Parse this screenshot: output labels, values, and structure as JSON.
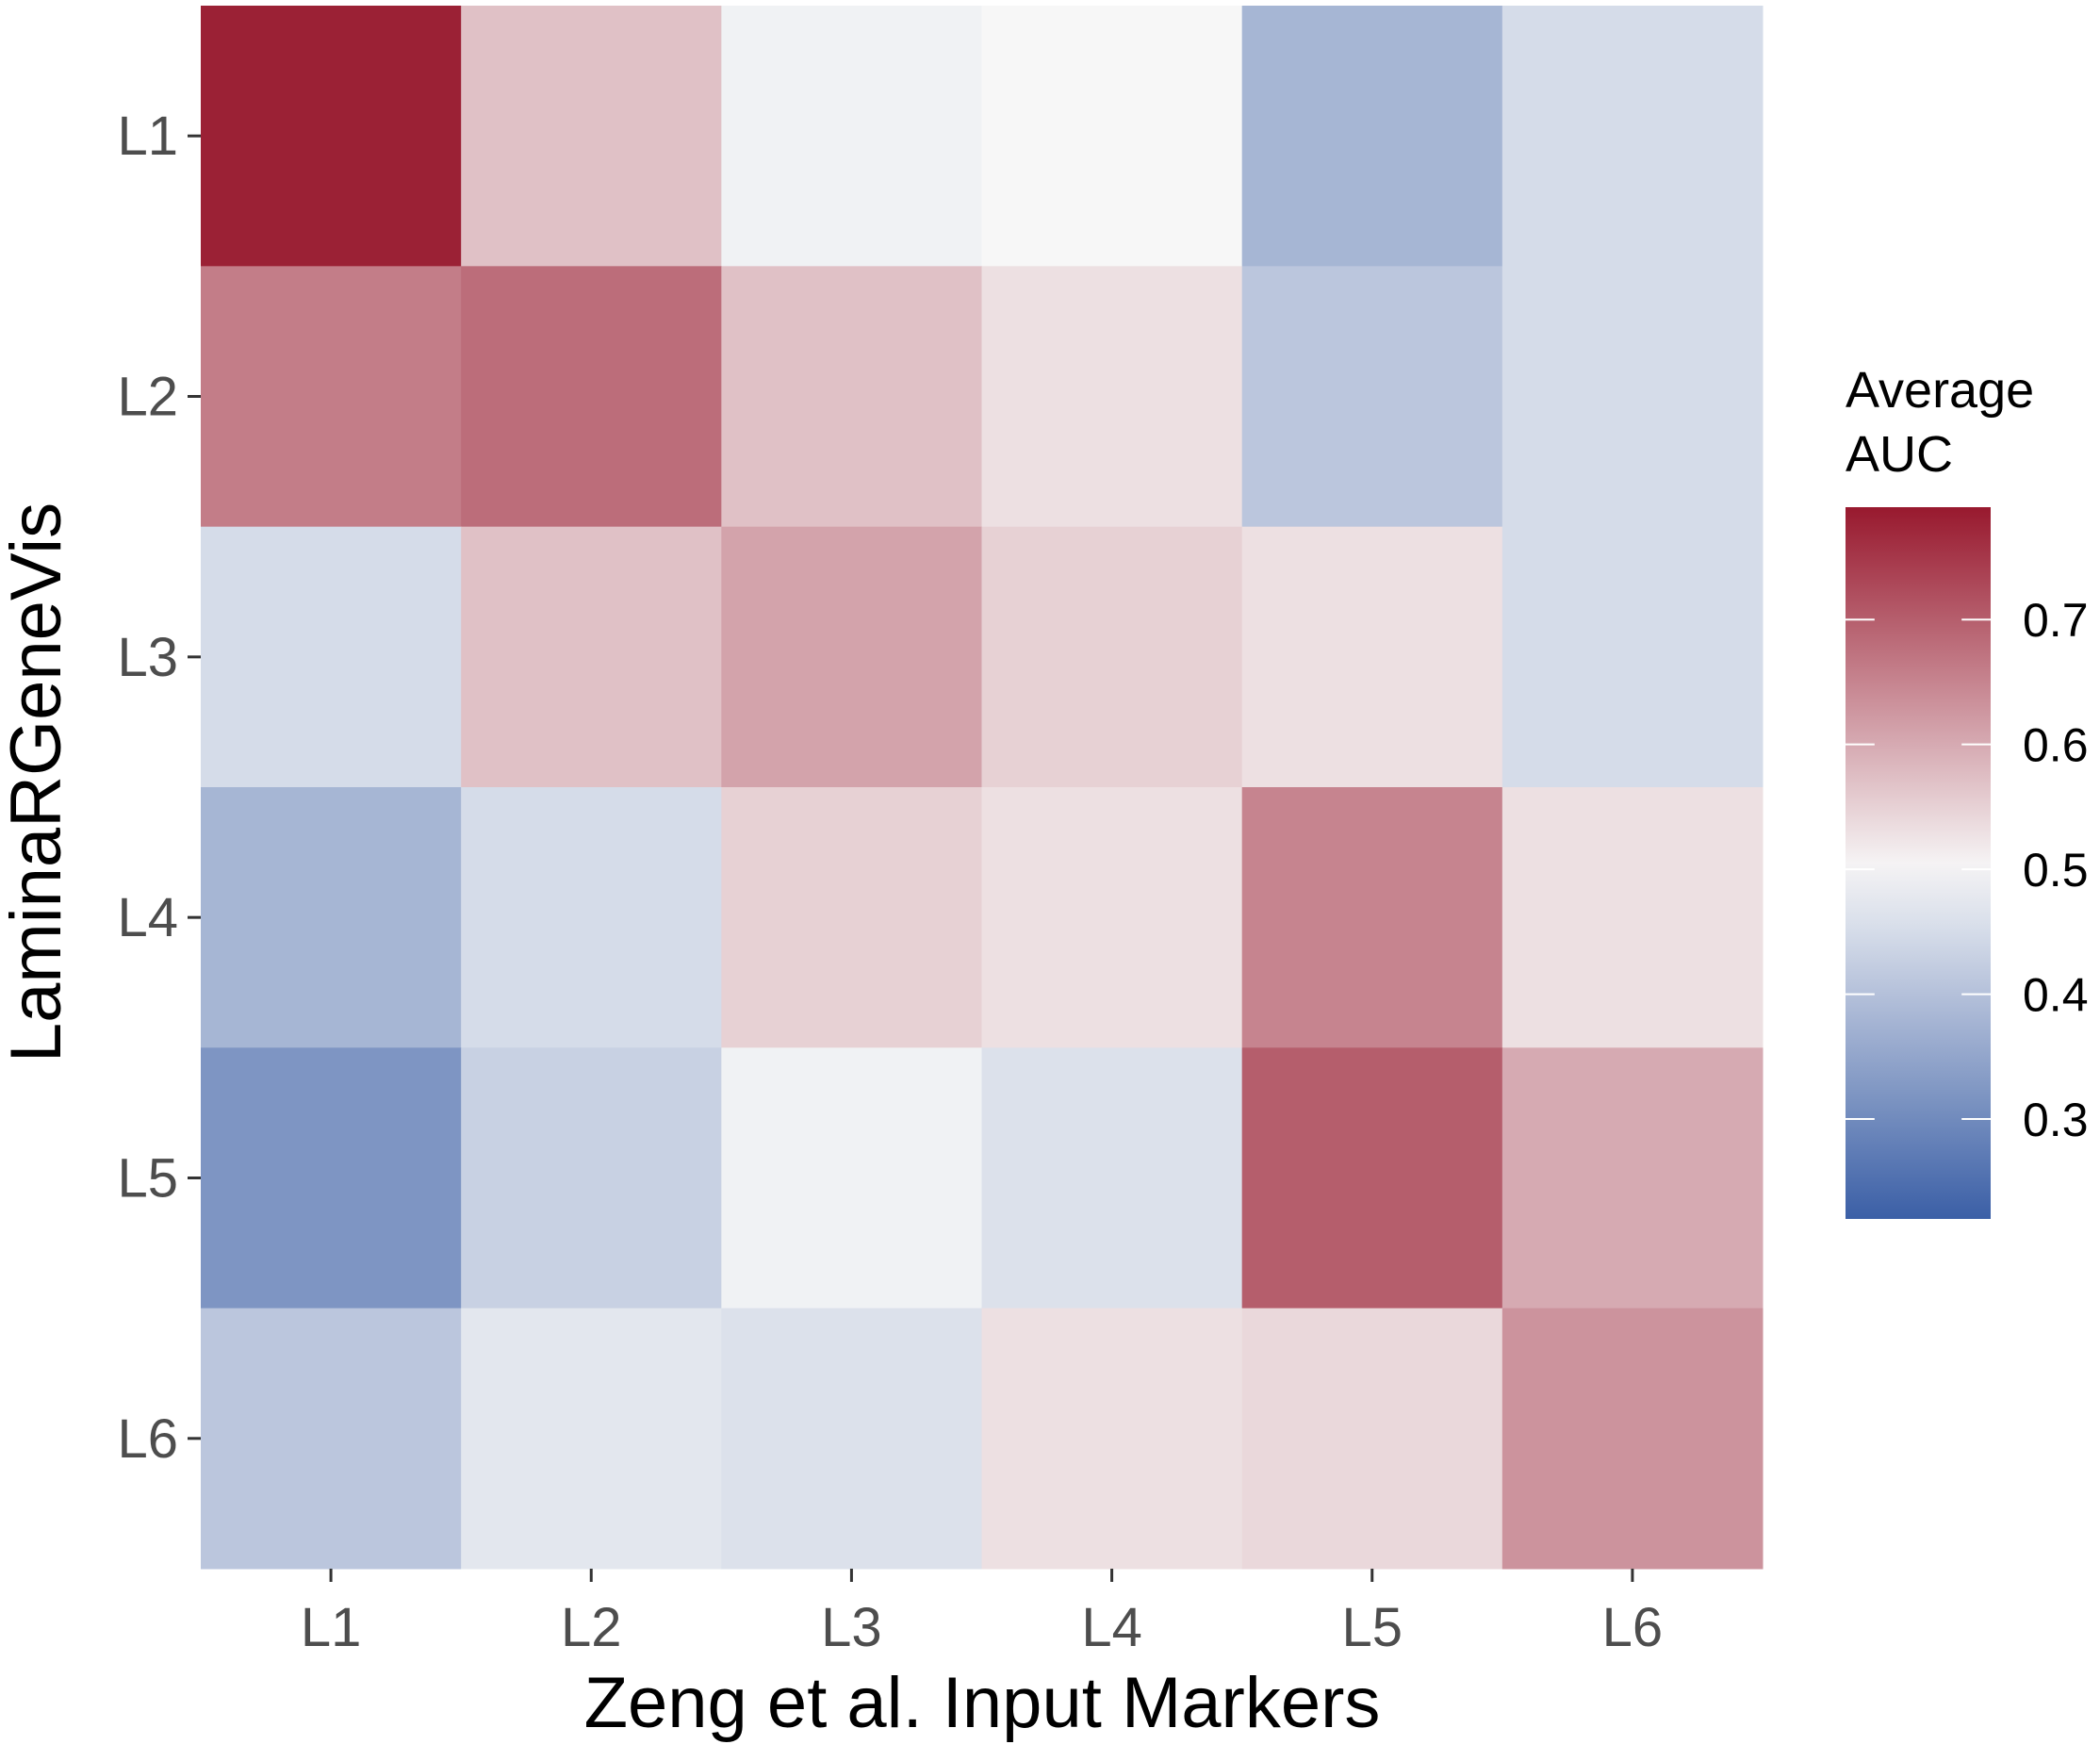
{
  "chart_data": {
    "type": "heatmap",
    "xlabel": "Zeng et al. Input Markers",
    "ylabel": "LaminaRGeneVis",
    "x_categories": [
      "L1",
      "L2",
      "L3",
      "L4",
      "L5",
      "L6"
    ],
    "y_categories": [
      "L1",
      "L2",
      "L3",
      "L4",
      "L5",
      "L6"
    ],
    "values": [
      [
        0.78,
        0.57,
        0.49,
        0.5,
        0.38,
        0.45
      ],
      [
        0.66,
        0.68,
        0.57,
        0.53,
        0.41,
        0.45
      ],
      [
        0.45,
        0.57,
        0.61,
        0.55,
        0.53,
        0.45
      ],
      [
        0.38,
        0.45,
        0.55,
        0.53,
        0.65,
        0.53
      ],
      [
        0.32,
        0.43,
        0.49,
        0.46,
        0.7,
        0.6
      ],
      [
        0.41,
        0.47,
        0.46,
        0.53,
        0.54,
        0.63
      ]
    ],
    "legend": {
      "title_lines": [
        "Average",
        "AUC"
      ],
      "ticks": [
        0.3,
        0.4,
        0.5,
        0.6,
        0.7
      ],
      "tick_labels": [
        "0.3",
        "0.4",
        "0.5",
        "0.6",
        "0.7"
      ],
      "range": [
        0.22,
        0.79
      ],
      "placement": "right"
    },
    "color_scale": {
      "midpoint": 0.5,
      "low_color": "#3b5fa6",
      "mid_color": "#f7f7f7",
      "high_color": "#98192e"
    },
    "grid": false
  }
}
